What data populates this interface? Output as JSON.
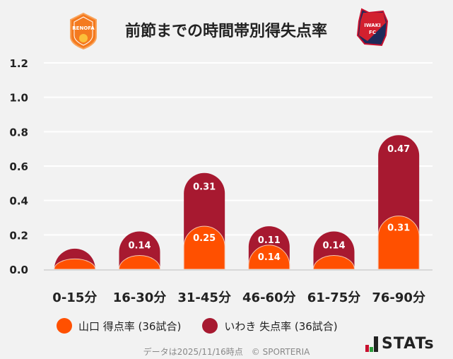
{
  "header": {
    "title": "前節までの時間帯別得失点率",
    "home_logo_text": "RENOFA",
    "away_logo_text": "IWAKI FC"
  },
  "chart_data": {
    "type": "bar",
    "stacked": true,
    "title": "前節までの時間帯別得失点率",
    "categories": [
      "0-15分",
      "16-30分",
      "31-45分",
      "46-60分",
      "61-75分",
      "76-90分"
    ],
    "series": [
      {
        "name": "山口 得点率 (36試合)",
        "color": "#ff5000",
        "values": [
          0.06,
          0.08,
          0.25,
          0.14,
          0.08,
          0.31
        ],
        "labels": [
          "",
          "",
          "0.25",
          "0.14",
          "",
          "0.31"
        ]
      },
      {
        "name": "いわき 失点率 (36試合)",
        "color": "#a71930",
        "values": [
          0.06,
          0.14,
          0.31,
          0.11,
          0.14,
          0.47
        ],
        "labels": [
          "",
          "0.14",
          "0.31",
          "0.11",
          "0.14",
          "0.47"
        ]
      }
    ],
    "ylim": [
      0,
      1.2
    ],
    "yticks": [
      "0.0",
      "0.2",
      "0.4",
      "0.6",
      "0.8",
      "1.0",
      "1.2"
    ],
    "grid": true,
    "legend": "bottom"
  },
  "footer": {
    "note": "データは2025/11/16時点　© SPORTERIA",
    "brand": "STATs"
  }
}
